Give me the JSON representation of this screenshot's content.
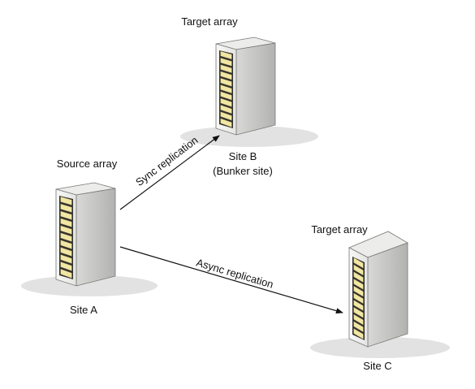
{
  "nodes": {
    "site_b": {
      "role_label": "Target array",
      "site_label": "Site B",
      "site_note": "(Bunker site)"
    },
    "site_a": {
      "role_label": "Source array",
      "site_label": "Site A"
    },
    "site_c": {
      "role_label": "Target array",
      "site_label": "Site C"
    }
  },
  "links": {
    "sync": {
      "label": "Sync replication"
    },
    "async": {
      "label": "Async replication"
    }
  },
  "colors": {
    "shadow": "#e2e2e2",
    "cabinet_front": "#f3f3f1",
    "cabinet_side": "#c9c9c7",
    "cabinet_top": "#ececea",
    "cabinet_outline": "#777777",
    "rack_panel": "#2f2f2f",
    "drive_light": "#f1e6a2",
    "drive_dark": "#6a6440",
    "arrow": "#111111"
  }
}
